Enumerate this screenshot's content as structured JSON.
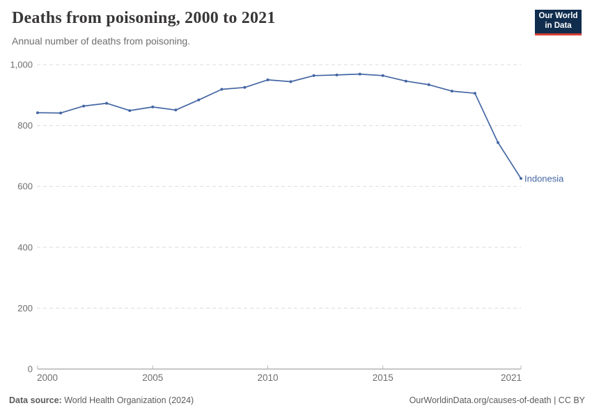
{
  "header": {
    "title": "Deaths from poisoning, 2000 to 2021",
    "subtitle": "Annual number of deaths from poisoning.",
    "logo": {
      "line1": "Our World",
      "line2": "in Data",
      "bg_color": "#102d4e",
      "accent_color": "#d73c34"
    }
  },
  "chart_data": {
    "type": "line",
    "title": "Deaths from poisoning, 2000 to 2021",
    "subtitle": "Annual number of deaths from poisoning.",
    "x": [
      2000,
      2001,
      2002,
      2003,
      2004,
      2005,
      2006,
      2007,
      2008,
      2009,
      2010,
      2011,
      2012,
      2013,
      2014,
      2015,
      2016,
      2017,
      2018,
      2019,
      2020,
      2021
    ],
    "series": [
      {
        "name": "Indonesia",
        "color": "#4466a3",
        "values": [
          842,
          841,
          864,
          873,
          849,
          861,
          851,
          884,
          919,
          925,
          950,
          944,
          964,
          966,
          969,
          964,
          946,
          934,
          913,
          906,
          744,
          626
        ]
      }
    ],
    "xlim": [
      2000,
      2021
    ],
    "ylim": [
      0,
      1000
    ],
    "x_ticks": [
      2000,
      2005,
      2010,
      2015,
      2021
    ],
    "x_tick_labels": [
      "2000",
      "2005",
      "2010",
      "2015",
      "2021"
    ],
    "y_ticks": [
      0,
      200,
      400,
      600,
      800,
      1000
    ],
    "y_tick_labels": [
      "0",
      "200",
      "400",
      "600",
      "800",
      "1,000"
    ],
    "grid": "horizontal dashed gridlines, light gray",
    "legend": "entity label at right end of line",
    "axis_color": "#8f8f8f",
    "grid_color": "#dcdcdc",
    "tick_label_color": "#6e6e6e"
  },
  "footer": {
    "source_label": "Data source:",
    "source_text": "World Health Organization (2024)",
    "rights": "OurWorldinData.org/causes-of-death | CC BY"
  }
}
